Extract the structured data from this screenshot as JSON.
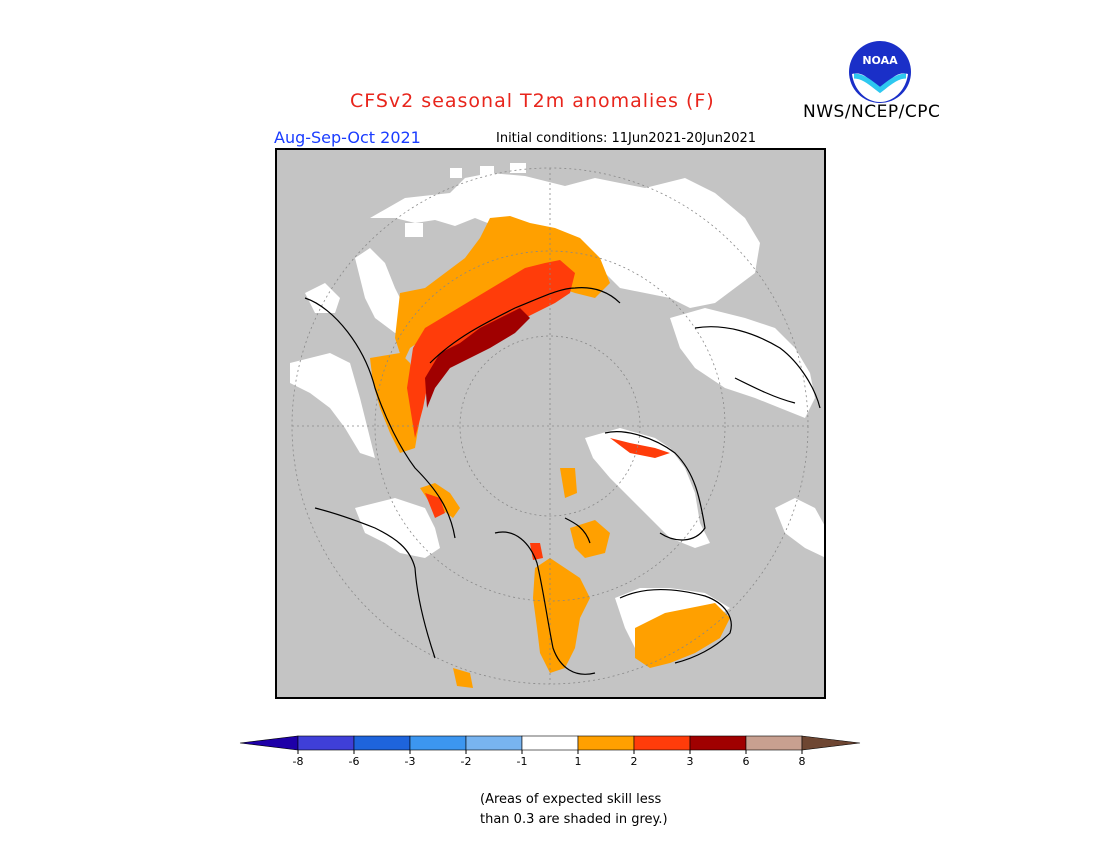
{
  "header": {
    "title": "CFSv2 seasonal T2m anomalies (F)",
    "agency": "NWS/NCEP/CPC",
    "season": "Aug-Sep-Oct 2021",
    "initial_conditions": "Initial conditions: 11Jun2021-20Jun2021",
    "logo_text": "NOAA"
  },
  "colors": {
    "title": "#e8251c",
    "season": "#1a3cff",
    "grey_mask": "#c4c4c4",
    "land_outline": "#000000"
  },
  "legend": {
    "bins": [
      {
        "color": "#1e00a8"
      },
      {
        "color": "#3f3fd8"
      },
      {
        "color": "#1e64dc"
      },
      {
        "color": "#3c96f0"
      },
      {
        "color": "#78b4f0"
      },
      {
        "color": "#ffffff"
      },
      {
        "color": "#ffa000"
      },
      {
        "color": "#ff3c0a"
      },
      {
        "color": "#a00000"
      },
      {
        "color": "#c8a090"
      },
      {
        "color": "#6e4632"
      }
    ],
    "ticks": [
      "-8",
      "-6",
      "-3",
      "-2",
      "-1",
      "1",
      "2",
      "3",
      "6",
      "8"
    ]
  },
  "footnote": {
    "line1": "(Areas of expected skill less",
    "line2": "than 0.3 are shaded in grey.)"
  }
}
